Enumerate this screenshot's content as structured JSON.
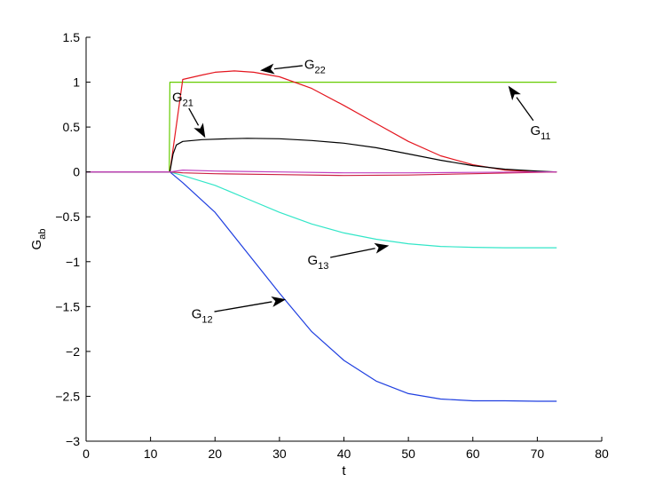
{
  "chart_data": {
    "type": "line",
    "xlabel": "t",
    "ylabel": {
      "base": "G",
      "sub": "ab"
    },
    "xlim": [
      0,
      80
    ],
    "ylim": [
      -3,
      1.5
    ],
    "xticks": [
      0,
      10,
      20,
      30,
      40,
      50,
      60,
      70,
      80
    ],
    "yticks": [
      1.5,
      1,
      0.5,
      0,
      -0.5,
      -1,
      -1.5,
      -2,
      -2.5,
      -3
    ],
    "xtick_labels": [
      "0",
      "10",
      "20",
      "30",
      "40",
      "50",
      "60",
      "70",
      "80"
    ],
    "ytick_labels": [
      "1.5",
      "1",
      "0.5",
      "0",
      "−0.5",
      "−1",
      "−1.5",
      "−2",
      "−2.5",
      "−3"
    ],
    "grid": false,
    "legend": "none",
    "series": [
      {
        "id": "G11",
        "color": "#66cc00",
        "x": [
          0,
          12.9,
          13.0,
          73
        ],
        "y": [
          0,
          0,
          1.0,
          1.0
        ]
      },
      {
        "id": "G22",
        "color": "#e4161f",
        "x": [
          0,
          13,
          15,
          18,
          20,
          23,
          26,
          30,
          35,
          40,
          45,
          50,
          55,
          60,
          65,
          70,
          73
        ],
        "y": [
          0,
          0,
          1.03,
          1.08,
          1.11,
          1.125,
          1.11,
          1.06,
          0.93,
          0.74,
          0.54,
          0.34,
          0.18,
          0.08,
          0.02,
          0.0,
          0.0
        ]
      },
      {
        "id": "G21",
        "color": "#000000",
        "x": [
          0,
          13,
          13.5,
          14,
          15,
          18,
          22,
          25,
          30,
          35,
          40,
          45,
          50,
          55,
          60,
          65,
          70,
          73
        ],
        "y": [
          0,
          0,
          0.2,
          0.3,
          0.34,
          0.36,
          0.37,
          0.375,
          0.37,
          0.35,
          0.32,
          0.27,
          0.2,
          0.13,
          0.07,
          0.03,
          0.01,
          0.0
        ]
      },
      {
        "id": "G13",
        "color": "#33e6c8",
        "x": [
          0,
          13,
          15,
          20,
          25,
          30,
          35,
          40,
          45,
          50,
          55,
          60,
          65,
          70,
          73
        ],
        "y": [
          0,
          0,
          -0.04,
          -0.15,
          -0.3,
          -0.45,
          -0.58,
          -0.68,
          -0.75,
          -0.8,
          -0.83,
          -0.84,
          -0.845,
          -0.845,
          -0.845
        ]
      },
      {
        "id": "G12",
        "color": "#1f3fe0",
        "x": [
          0,
          13,
          15,
          20,
          25,
          30,
          35,
          40,
          45,
          50,
          55,
          60,
          65,
          70,
          73
        ],
        "y": [
          0,
          0,
          -0.12,
          -0.45,
          -0.9,
          -1.35,
          -1.78,
          -2.1,
          -2.33,
          -2.47,
          -2.53,
          -2.55,
          -2.55,
          -2.555,
          -2.555
        ]
      },
      {
        "id": "small_red",
        "color": "#cc2244",
        "x": [
          0,
          13,
          15,
          20,
          30,
          40,
          50,
          60,
          70,
          73
        ],
        "y": [
          0,
          0,
          -0.01,
          -0.02,
          -0.03,
          -0.04,
          -0.035,
          -0.02,
          -0.005,
          0
        ]
      },
      {
        "id": "small_magenta",
        "color": "#c040c0",
        "x": [
          0,
          13,
          15,
          20,
          30,
          40,
          50,
          60,
          70,
          73
        ],
        "y": [
          0,
          0,
          0.02,
          0.01,
          0.0,
          -0.01,
          -0.01,
          -0.005,
          0.0,
          0
        ]
      }
    ],
    "annotations": [
      {
        "base": "G",
        "sub": "22",
        "text_x": 35.5,
        "text_y": 1.2,
        "arrow_x": 27.0,
        "arrow_y": 1.13
      },
      {
        "base": "G",
        "sub": "21",
        "text_x": 15.0,
        "text_y": 0.83,
        "arrow_x": 18.5,
        "arrow_y": 0.38
      },
      {
        "base": "G",
        "sub": "11",
        "text_x": 70.5,
        "text_y": 0.46,
        "arrow_x": 65.5,
        "arrow_y": 0.96
      },
      {
        "base": "G",
        "sub": "13",
        "text_x": 36.0,
        "text_y": -0.98,
        "arrow_x": 47.0,
        "arrow_y": -0.82
      },
      {
        "base": "G",
        "sub": "12",
        "text_x": 18.0,
        "text_y": -1.58,
        "arrow_x": 31.0,
        "arrow_y": -1.42
      }
    ]
  }
}
